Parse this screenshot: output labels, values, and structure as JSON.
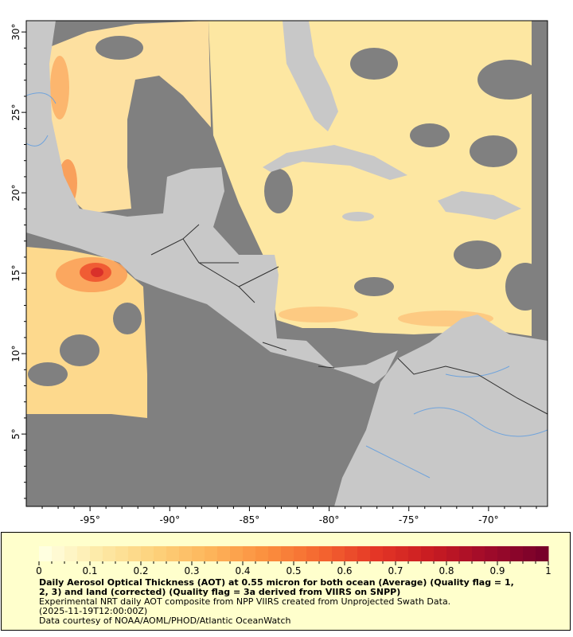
{
  "map": {
    "x_ticks": [
      "-95°",
      "-90°",
      "-85°",
      "-80°",
      "-75°",
      "-70°"
    ],
    "x_tick_values": [
      -95,
      -90,
      -85,
      -80,
      -75,
      -70
    ],
    "y_ticks": [
      "30°",
      "25°",
      "20°",
      "15°",
      "10°",
      "5°"
    ],
    "y_tick_values": [
      30,
      25,
      20,
      15,
      10,
      5
    ],
    "lon_range": [
      -99,
      -66.3
    ],
    "lat_range": [
      0.5,
      30.7
    ],
    "colors": {
      "ocean_nodata": "#808080",
      "land": "#c8c8c8",
      "rivers": "#6fa3dc",
      "borders": "#808080",
      "country_borders": "#303030"
    }
  },
  "legend": {
    "colorbar_ticks": [
      "0",
      "0.1",
      "0.2",
      "0.3",
      "0.4",
      "0.5",
      "0.6",
      "0.7",
      "0.8",
      "0.9",
      "1"
    ],
    "colorbar_range": [
      0,
      1
    ],
    "colorscale": [
      "#ffffe0",
      "#fde9a6",
      "#fdd17a",
      "#fdb45a",
      "#fb8f3e",
      "#f46630",
      "#e43626",
      "#c81b22",
      "#a00b2a",
      "#78002a"
    ],
    "title_line1": "Daily Aerosol Optical Thickness (AOT) at 0.55 micron for both ocean (Average) (Quality flag = 1,",
    "title_line2": "2, 3) and land (corrected) (Quality flag = 3a derived from VIIRS on SNPP)",
    "line3": "Experimental NRT daily AOT composite from NPP VIIRS created from Unprojected Swath Data.",
    "line4": "(2025-11-19T12:00:00Z)",
    "line5": "Data courtesy of NOAA/AOML/PHOD/Atlantic OceanWatch"
  }
}
